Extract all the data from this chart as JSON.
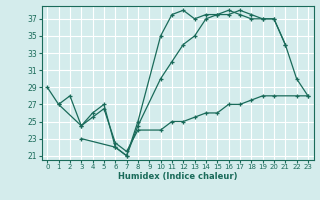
{
  "xlabel": "Humidex (Indice chaleur)",
  "bg_color": "#d4ecec",
  "grid_color": "#ffffff",
  "line_color": "#1a6b5a",
  "xlim": [
    -0.5,
    23.5
  ],
  "ylim": [
    20.5,
    38.5
  ],
  "xticks": [
    0,
    1,
    2,
    3,
    4,
    5,
    6,
    7,
    8,
    9,
    10,
    11,
    12,
    13,
    14,
    15,
    16,
    17,
    18,
    19,
    20,
    21,
    22,
    23
  ],
  "yticks": [
    21,
    23,
    25,
    27,
    29,
    31,
    33,
    35,
    37
  ],
  "series": [
    {
      "x": [
        0,
        1,
        2,
        3,
        4,
        5,
        6,
        7,
        8,
        10,
        11,
        12,
        13,
        14,
        15,
        16,
        17,
        18,
        19,
        20,
        21,
        22,
        23
      ],
      "y": [
        29,
        27,
        28,
        24.5,
        26,
        27,
        22,
        21,
        25,
        35,
        37.5,
        38,
        37,
        37.5,
        37.5,
        38,
        37.5,
        37,
        37,
        37,
        34,
        30,
        28
      ]
    },
    {
      "x": [
        3,
        6,
        7,
        8,
        10,
        11,
        12,
        13,
        14,
        15,
        16,
        17,
        18,
        19,
        20,
        21
      ],
      "y": [
        23,
        22,
        21,
        24.5,
        30,
        32,
        34,
        35,
        37,
        37.5,
        37.5,
        38,
        37.5,
        37,
        37,
        34
      ]
    },
    {
      "x": [
        1,
        3,
        4,
        5,
        6,
        7,
        8,
        10,
        11,
        12,
        13,
        14,
        15,
        16,
        17,
        18,
        19,
        20,
        22,
        23
      ],
      "y": [
        27,
        24.5,
        25.5,
        26.5,
        22.5,
        21.5,
        24,
        24,
        25,
        25,
        25.5,
        26,
        26,
        27,
        27,
        27.5,
        28,
        28,
        28,
        28
      ]
    }
  ]
}
